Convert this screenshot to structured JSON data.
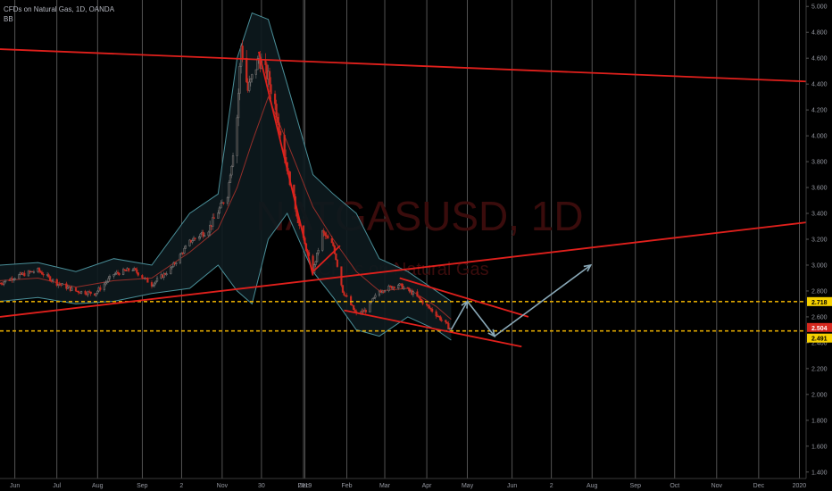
{
  "header": {
    "title": "CFDs on Natural Gas, 1D, OANDA",
    "indicator": "BB"
  },
  "watermark": {
    "symbol": "NATGASUSD, 1D",
    "name": "CFDs on Natural Gas"
  },
  "price_labels": {
    "upper_level": "2.718",
    "current_price": "2.504",
    "lower_level": "2.491"
  },
  "colors": {
    "background": "#000000",
    "grid": "#7a7a7a",
    "trendline": "#e0201c",
    "level_line": "#e0a800",
    "projection": "#8aa9b8",
    "band": "#4a8f99",
    "band_fill": "#0d1a1e",
    "basis": "#b8342d",
    "candle_up": "#2e2e2e",
    "candle_down": "#c92a21",
    "current_price_bg": "#d6281e",
    "level_label_bg": "#f5d000"
  },
  "chart_data": {
    "type": "candlestick",
    "symbol": "NATGASUSD",
    "interval": "1D",
    "ylim": [
      1.35,
      5.05
    ],
    "yticks": [
      "1.400",
      "1.600",
      "1.800",
      "2.000",
      "2.200",
      "2.400",
      "2.600",
      "2.800",
      "3.000",
      "3.200",
      "3.400",
      "3.600",
      "3.800",
      "4.000",
      "4.200",
      "4.400",
      "4.600",
      "4.800",
      "5.000"
    ],
    "xticks": [
      "Jun",
      "Jul",
      "Aug",
      "Sep",
      "2",
      "Nov",
      "30",
      "Dec",
      "2019",
      "Feb",
      "Mar",
      "Apr",
      "May",
      "Jun",
      "2",
      "Aug",
      "Sep",
      "Oct",
      "Nov",
      "Dec",
      "2020"
    ],
    "xtick_dates": [
      "2018-06-01",
      "2018-07-02",
      "2018-08-01",
      "2018-09-03",
      "2018-10-02",
      "2018-11-01",
      "2018-11-30",
      "2018-12-31",
      "2019-01-01",
      "2019-02-01",
      "2019-03-01",
      "2019-04-01",
      "2019-05-01",
      "2019-06-03",
      "2019-07-02",
      "2019-08-01",
      "2019-09-02",
      "2019-10-01",
      "2019-11-01",
      "2019-12-02",
      "2020-01-01"
    ],
    "close_path": [
      [
        "2018-05-21",
        2.86
      ],
      [
        "2018-06-04",
        2.92
      ],
      [
        "2018-06-18",
        2.96
      ],
      [
        "2018-07-02",
        2.86
      ],
      [
        "2018-07-16",
        2.8
      ],
      [
        "2018-07-30",
        2.78
      ],
      [
        "2018-08-13",
        2.93
      ],
      [
        "2018-08-27",
        2.97
      ],
      [
        "2018-09-10",
        2.85
      ],
      [
        "2018-09-24",
        2.97
      ],
      [
        "2018-10-08",
        3.18
      ],
      [
        "2018-10-22",
        3.28
      ],
      [
        "2018-11-05",
        3.55
      ],
      [
        "2018-11-12",
        4.15
      ],
      [
        "2018-11-15",
        4.7
      ],
      [
        "2018-11-20",
        4.35
      ],
      [
        "2018-11-28",
        4.6
      ],
      [
        "2018-12-05",
        4.45
      ],
      [
        "2018-12-12",
        4.15
      ],
      [
        "2018-12-19",
        3.75
      ],
      [
        "2018-12-28",
        3.3
      ],
      [
        "2019-01-07",
        2.95
      ],
      [
        "2019-01-14",
        3.25
      ],
      [
        "2019-01-22",
        3.15
      ],
      [
        "2019-01-29",
        2.8
      ],
      [
        "2019-02-08",
        2.62
      ],
      [
        "2019-02-15",
        2.65
      ],
      [
        "2019-02-25",
        2.8
      ],
      [
        "2019-03-11",
        2.85
      ],
      [
        "2019-03-22",
        2.78
      ],
      [
        "2019-04-08",
        2.62
      ],
      [
        "2019-04-19",
        2.5
      ]
    ],
    "bollinger": {
      "upper": [
        [
          "2018-05-21",
          3.0
        ],
        [
          "2018-06-18",
          3.02
        ],
        [
          "2018-07-16",
          2.95
        ],
        [
          "2018-08-13",
          3.05
        ],
        [
          "2018-09-10",
          3.0
        ],
        [
          "2018-10-08",
          3.4
        ],
        [
          "2018-10-29",
          3.55
        ],
        [
          "2018-11-12",
          4.6
        ],
        [
          "2018-11-23",
          4.95
        ],
        [
          "2018-12-05",
          4.9
        ],
        [
          "2018-12-19",
          4.4
        ],
        [
          "2019-01-07",
          3.7
        ],
        [
          "2019-01-22",
          3.55
        ],
        [
          "2019-02-08",
          3.4
        ],
        [
          "2019-02-25",
          3.05
        ],
        [
          "2019-03-18",
          2.95
        ],
        [
          "2019-04-08",
          2.8
        ],
        [
          "2019-04-19",
          2.72
        ]
      ],
      "basis": [
        [
          "2018-05-21",
          2.88
        ],
        [
          "2018-06-18",
          2.9
        ],
        [
          "2018-07-16",
          2.83
        ],
        [
          "2018-08-13",
          2.88
        ],
        [
          "2018-09-10",
          2.9
        ],
        [
          "2018-10-08",
          3.1
        ],
        [
          "2018-10-29",
          3.28
        ],
        [
          "2018-11-12",
          3.6
        ],
        [
          "2018-11-23",
          3.95
        ],
        [
          "2018-12-05",
          4.3
        ],
        [
          "2018-12-19",
          3.95
        ],
        [
          "2019-01-07",
          3.45
        ],
        [
          "2019-01-22",
          3.2
        ],
        [
          "2019-02-08",
          2.95
        ],
        [
          "2019-02-25",
          2.8
        ],
        [
          "2019-03-18",
          2.82
        ],
        [
          "2019-04-08",
          2.68
        ],
        [
          "2019-04-19",
          2.58
        ]
      ],
      "lower": [
        [
          "2018-05-21",
          2.72
        ],
        [
          "2018-06-18",
          2.75
        ],
        [
          "2018-07-16",
          2.7
        ],
        [
          "2018-08-13",
          2.72
        ],
        [
          "2018-09-10",
          2.78
        ],
        [
          "2018-10-08",
          2.82
        ],
        [
          "2018-10-29",
          3.0
        ],
        [
          "2018-11-12",
          2.8
        ],
        [
          "2018-11-23",
          2.7
        ],
        [
          "2018-12-05",
          3.2
        ],
        [
          "2018-12-19",
          3.4
        ],
        [
          "2019-01-07",
          2.95
        ],
        [
          "2019-01-22",
          2.75
        ],
        [
          "2019-02-08",
          2.5
        ],
        [
          "2019-02-25",
          2.45
        ],
        [
          "2019-03-18",
          2.6
        ],
        [
          "2019-04-08",
          2.5
        ],
        [
          "2019-04-19",
          2.42
        ]
      ]
    },
    "levels": [
      2.718,
      2.491
    ],
    "current_price": 2.504,
    "trendlines": [
      {
        "from": [
          "2018-05-21",
          4.67
        ],
        "to": [
          "2020-01-06",
          4.42
        ]
      },
      {
        "from": [
          "2018-05-21",
          2.6
        ],
        "to": [
          "2020-01-06",
          3.33
        ]
      },
      {
        "from": [
          "2018-11-28",
          4.65
        ],
        "to": [
          "2019-01-07",
          2.92
        ]
      },
      {
        "from": [
          "2019-01-07",
          2.95
        ],
        "to": [
          "2019-01-27",
          3.15
        ]
      },
      {
        "from": [
          "2019-03-12",
          2.9
        ],
        "to": [
          "2019-06-15",
          2.6
        ]
      },
      {
        "from": [
          "2019-01-30",
          2.65
        ],
        "to": [
          "2019-06-10",
          2.37
        ]
      }
    ],
    "projection": [
      [
        "2019-04-19",
        2.5
      ],
      [
        "2019-05-01",
        2.72
      ],
      [
        "2019-05-21",
        2.45
      ],
      [
        "2019-07-31",
        3.0
      ]
    ]
  }
}
